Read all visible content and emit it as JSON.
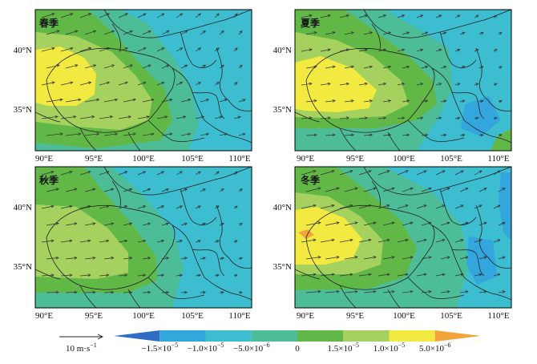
{
  "panels": [
    {
      "label": "春季"
    },
    {
      "label": "夏季"
    },
    {
      "label": "秋季"
    },
    {
      "label": "冬季"
    }
  ],
  "axes": {
    "x_ticks": [
      "90°E",
      "95°E",
      "100°E",
      "105°E",
      "110°E"
    ],
    "y_ticks": [
      "40°N",
      "35°N"
    ]
  },
  "reference_vector": {
    "label": "10 m·s",
    "exponent": "−1"
  },
  "colorbar": {
    "labels": [
      {
        "mant": "−1.5×10",
        "exp": "−5"
      },
      {
        "mant": "−1.0×10",
        "exp": "−5"
      },
      {
        "mant": "−5.0×10",
        "exp": "−6"
      },
      {
        "mant": "0",
        "exp": ""
      },
      {
        "mant": "1.5×10",
        "exp": "−5"
      },
      {
        "mant": "1.0×10",
        "exp": "−5"
      },
      {
        "mant": "5.0×10",
        "exp": "−6"
      }
    ],
    "colors": [
      "#2f6dc4",
      "#33a6dd",
      "#3cbed0",
      "#4dbd98",
      "#62b846",
      "#a5d15e",
      "#f2ea41",
      "#f2a33a"
    ]
  },
  "colors": {
    "c_neg2": "#33a6dd",
    "c_neg1": "#3cbed0",
    "c_zero": "#4dbd98",
    "c_pos1": "#62b846",
    "c_pos2": "#a5d15e",
    "c_pos3": "#f2ea41",
    "c_pos4": "#f2a33a"
  }
}
